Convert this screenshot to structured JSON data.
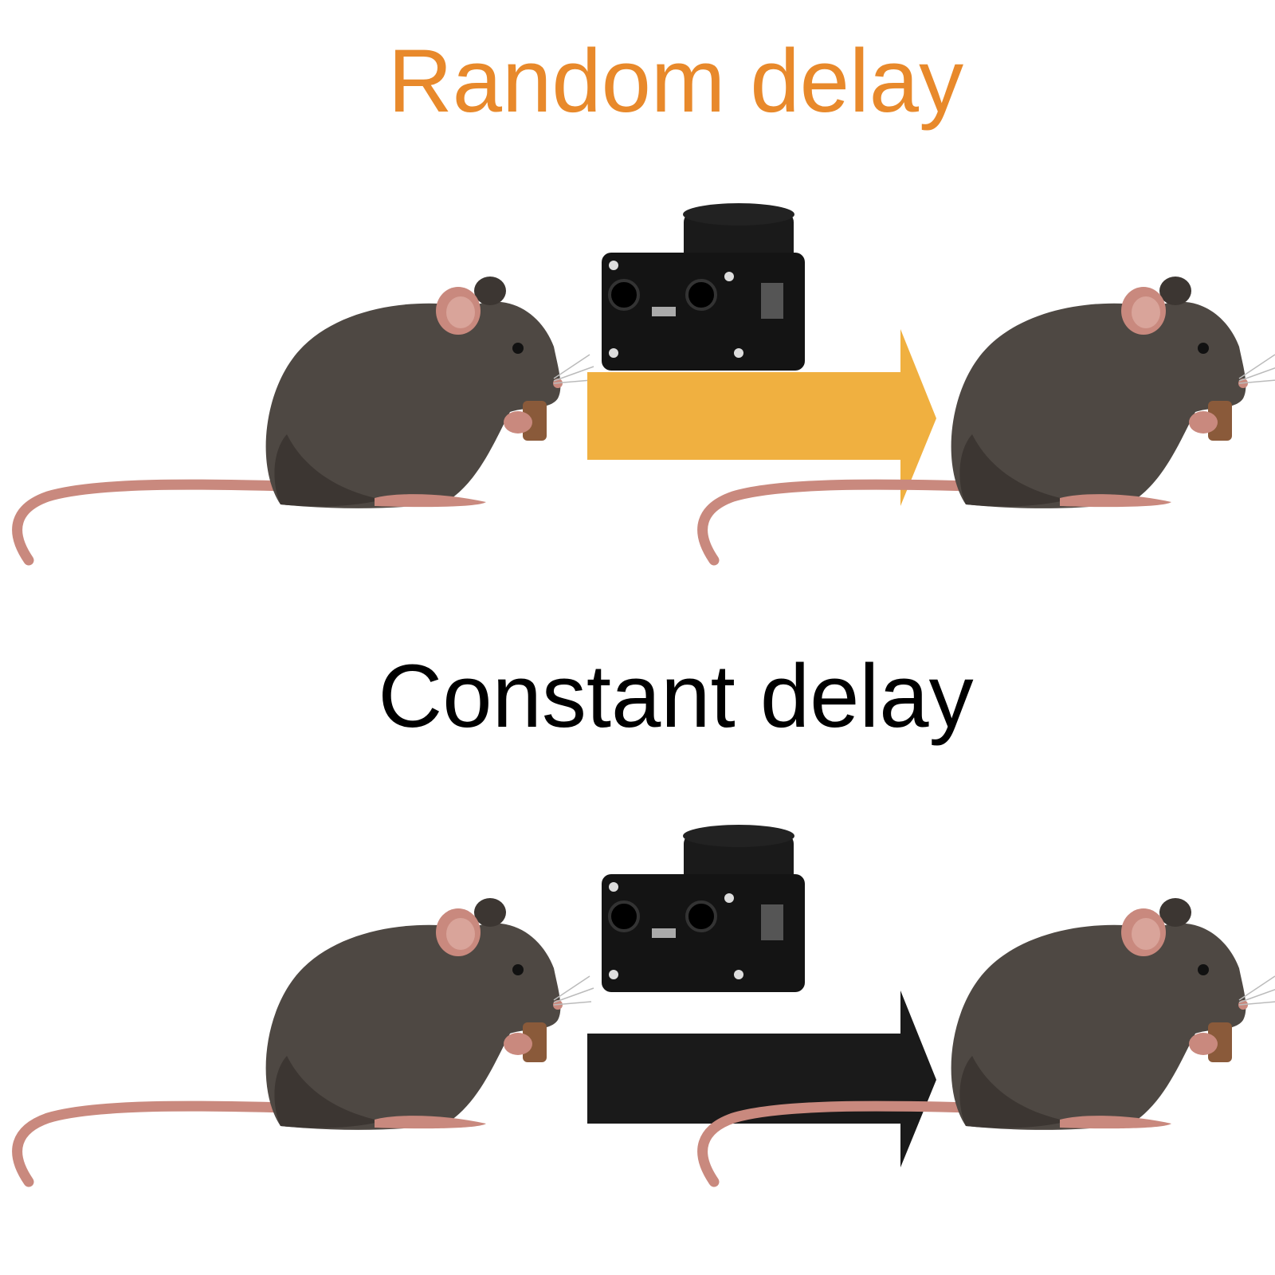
{
  "titles": {
    "random": "Random delay",
    "constant": "Constant delay"
  },
  "colors": {
    "random_title": "#E8892B",
    "constant_title": "#000000",
    "random_arrow": "#F0B040",
    "constant_arrow": "#1A1A1A",
    "mouse_body": "#4E4843",
    "mouse_shade": "#3C3632",
    "mouse_pink": "#C9897E",
    "mouse_ear_inner": "#D9A49A",
    "food": "#8A5A3A",
    "device": "#141414"
  },
  "panels": [
    {
      "key": "random",
      "arrow_color_key": "random_arrow",
      "icons": [
        "mouse-icon",
        "camera-device-icon",
        "arrow-icon",
        "mouse-icon"
      ]
    },
    {
      "key": "constant",
      "arrow_color_key": "constant_arrow",
      "icons": [
        "mouse-icon",
        "camera-device-icon",
        "arrow-icon",
        "mouse-icon"
      ]
    }
  ]
}
